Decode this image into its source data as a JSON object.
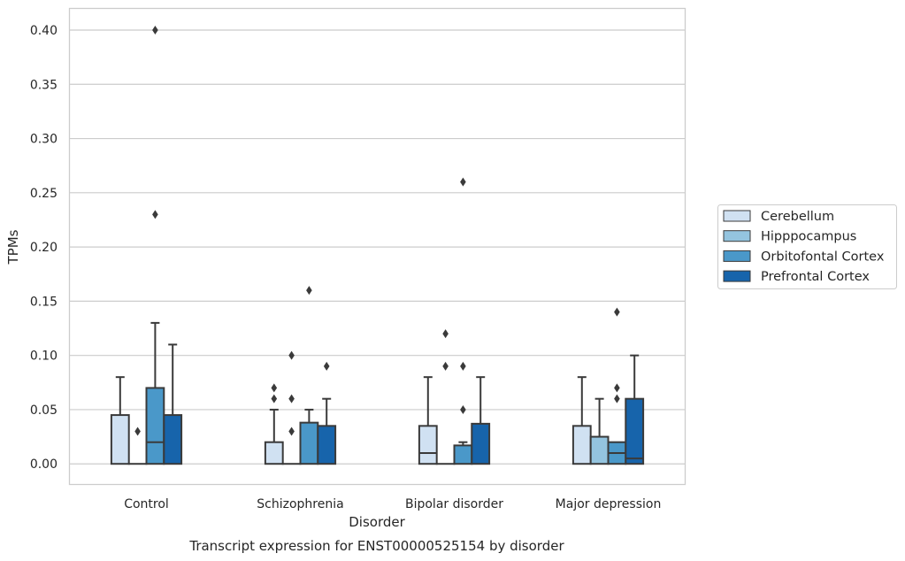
{
  "chart_data": {
    "type": "box",
    "title": "Transcript expression for ENST00000525154 by disorder",
    "xlabel": "Disorder",
    "ylabel": "TPMs",
    "ylim": [
      -0.019,
      0.42
    ],
    "yticks": [
      "0.00",
      "0.05",
      "0.10",
      "0.15",
      "0.20",
      "0.25",
      "0.30",
      "0.35",
      "0.40"
    ],
    "categories": [
      "Control",
      "Schizophrenia",
      "Bipolar disorder",
      "Major depression"
    ],
    "grid": "horizontal",
    "legend_position": "right",
    "series": [
      {
        "name": "Cerebellum",
        "color": "#d0e1f2",
        "boxes": [
          {
            "q1": 0.0,
            "median": 0.0,
            "q3": 0.045,
            "whisker_low": 0.0,
            "whisker_high": 0.08,
            "outliers": []
          },
          {
            "q1": 0.0,
            "median": 0.0,
            "q3": 0.02,
            "whisker_low": 0.0,
            "whisker_high": 0.05,
            "outliers": [
              0.06,
              0.07
            ]
          },
          {
            "q1": 0.0,
            "median": 0.01,
            "q3": 0.035,
            "whisker_low": 0.0,
            "whisker_high": 0.08,
            "outliers": []
          },
          {
            "q1": 0.0,
            "median": 0.0,
            "q3": 0.035,
            "whisker_low": 0.0,
            "whisker_high": 0.08,
            "outliers": []
          }
        ]
      },
      {
        "name": "Hipppocampus",
        "color": "#94c4df",
        "boxes": [
          {
            "q1": 0.0,
            "median": 0.0,
            "q3": 0.0,
            "whisker_low": 0.0,
            "whisker_high": 0.0,
            "outliers": [
              0.03
            ]
          },
          {
            "q1": 0.0,
            "median": 0.0,
            "q3": 0.0,
            "whisker_low": 0.0,
            "whisker_high": 0.0,
            "outliers": [
              0.03,
              0.06,
              0.1
            ]
          },
          {
            "q1": 0.0,
            "median": 0.0,
            "q3": 0.0,
            "whisker_low": 0.0,
            "whisker_high": 0.0,
            "outliers": [
              0.09,
              0.12
            ]
          },
          {
            "q1": 0.0,
            "median": 0.0,
            "q3": 0.025,
            "whisker_low": 0.0,
            "whisker_high": 0.06,
            "outliers": []
          }
        ]
      },
      {
        "name": "Orbitofontal Cortex",
        "color": "#4a98c9",
        "boxes": [
          {
            "q1": 0.0,
            "median": 0.02,
            "q3": 0.07,
            "whisker_low": 0.0,
            "whisker_high": 0.13,
            "outliers": [
              0.23,
              0.4
            ]
          },
          {
            "q1": 0.0,
            "median": 0.0,
            "q3": 0.038,
            "whisker_low": 0.0,
            "whisker_high": 0.05,
            "outliers": [
              0.16
            ]
          },
          {
            "q1": 0.0,
            "median": 0.0,
            "q3": 0.017,
            "whisker_low": 0.0,
            "whisker_high": 0.02,
            "outliers": [
              0.05,
              0.09,
              0.26
            ]
          },
          {
            "q1": 0.0,
            "median": 0.01,
            "q3": 0.02,
            "whisker_low": 0.0,
            "whisker_high": 0.02,
            "outliers": [
              0.06,
              0.07,
              0.14
            ]
          }
        ]
      },
      {
        "name": "Prefrontal Cortex",
        "color": "#1764ab",
        "boxes": [
          {
            "q1": 0.0,
            "median": 0.0,
            "q3": 0.045,
            "whisker_low": 0.0,
            "whisker_high": 0.11,
            "outliers": []
          },
          {
            "q1": 0.0,
            "median": 0.0,
            "q3": 0.035,
            "whisker_low": 0.0,
            "whisker_high": 0.06,
            "outliers": [
              0.09
            ]
          },
          {
            "q1": 0.0,
            "median": 0.0,
            "q3": 0.037,
            "whisker_low": 0.0,
            "whisker_high": 0.08,
            "outliers": []
          },
          {
            "q1": 0.0,
            "median": 0.005,
            "q3": 0.06,
            "whisker_low": 0.0,
            "whisker_high": 0.1,
            "outliers": []
          }
        ]
      }
    ]
  }
}
